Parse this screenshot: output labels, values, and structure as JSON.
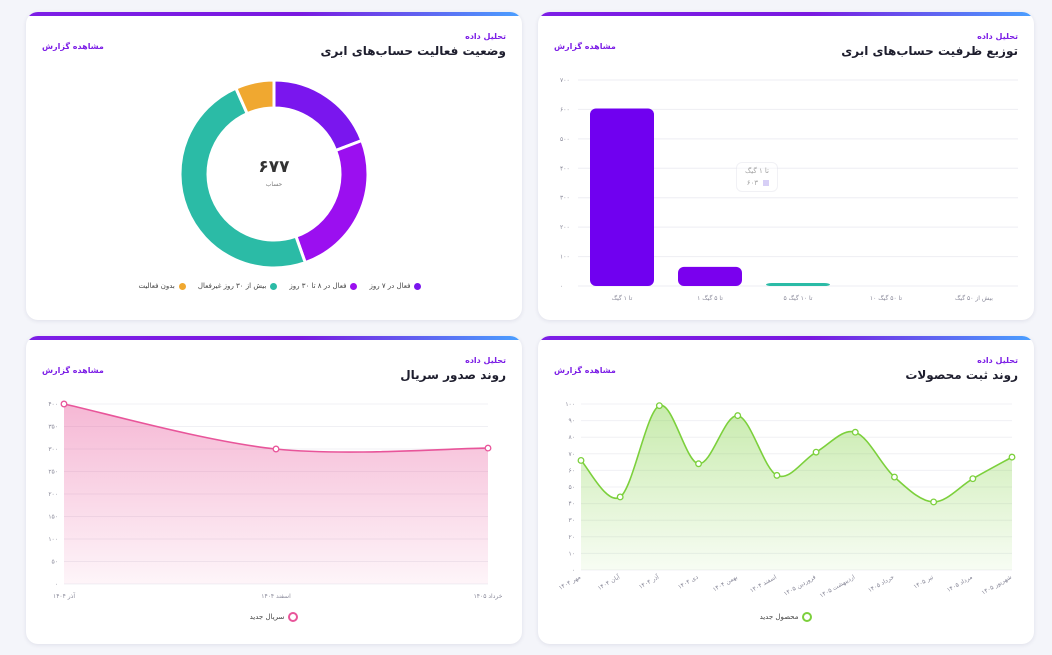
{
  "common": {
    "subtitle": "تحلیل داده",
    "report_link": "مشاهده گزارش"
  },
  "cards": {
    "activity": {
      "title": "وضعیت فعالیت حساب‌های ابری"
    },
    "capacity": {
      "title": "توزیع ظرفیت حساب‌های ابری"
    },
    "serial": {
      "title": "روند صدور سریال"
    },
    "products": {
      "title": "روند ثبت محصولات"
    }
  },
  "donut": {
    "total": "۶۷۷",
    "unit": "حساب"
  },
  "tooltip": {
    "title": "تا ۱ گیگ",
    "value": "۶۰۳"
  },
  "chart_data": [
    {
      "id": "activity",
      "type": "pie",
      "categories": [
        "فعال در ۷ روز",
        "فعال در ۸ تا ۳۰ روز",
        "بیش از ۳۰ روز غیرفعال",
        "بدون فعالیت"
      ],
      "values": [
        130,
        172,
        330,
        45
      ],
      "colors": [
        "#7a16ee",
        "#9b0ff0",
        "#2bbba6",
        "#f0a830"
      ]
    },
    {
      "id": "capacity",
      "type": "bar",
      "categories": [
        "تا ۱ گیگ",
        "۱ تا ۵ گیگ",
        "۵ تا ۱۰ گیگ",
        "۱۰ تا ۵۰ گیگ",
        "بیش از ۵۰ گیگ"
      ],
      "values": [
        603,
        65,
        10,
        0,
        0
      ],
      "colors": [
        "#7000f0",
        "#7a00ee",
        "#2bbba6",
        "#cccccc",
        "#cccccc"
      ],
      "ylim": [
        0,
        700
      ],
      "yticks": [
        "۰",
        "۱۰۰",
        "۲۰۰",
        "۳۰۰",
        "۴۰۰",
        "۵۰۰",
        "۶۰۰",
        "۷۰۰"
      ]
    },
    {
      "id": "serial",
      "type": "area",
      "x": [
        "آذر ۱۴۰۴",
        "اسفند ۱۴۰۴",
        "خرداد ۱۴۰۵"
      ],
      "series": [
        {
          "name": "سریال جدید",
          "values": [
            400,
            300,
            302
          ]
        }
      ],
      "color": "#e8559a",
      "ylim": [
        0,
        400
      ],
      "yticks": [
        "۰",
        "۵۰",
        "۱۰۰",
        "۱۵۰",
        "۲۰۰",
        "۲۵۰",
        "۳۰۰",
        "۳۵۰",
        "۴۰۰"
      ]
    },
    {
      "id": "products",
      "type": "area",
      "x": [
        "مهر ۱۴۰۴",
        "آبان ۱۴۰۴",
        "آذر ۱۴۰۴",
        "دی ۱۴۰۴",
        "بهمن ۱۴۰۴",
        "اسفند ۱۴۰۴",
        "فروردین ۱۴۰۵",
        "اردیبهشت ۱۴۰۵",
        "خرداد ۱۴۰۵",
        "تیر ۱۴۰۵",
        "مرداد ۱۴۰۵",
        "شهریور ۱۴۰۵"
      ],
      "series": [
        {
          "name": "محصول جدید",
          "values": [
            66,
            44,
            99,
            64,
            93,
            57,
            71,
            83,
            56,
            41,
            55,
            68
          ]
        }
      ],
      "color": "#7cd03c",
      "ylim": [
        0,
        100
      ],
      "yticks": [
        "۰",
        "۱۰",
        "۲۰",
        "۳۰",
        "۴۰",
        "۵۰",
        "۶۰",
        "۷۰",
        "۸۰",
        "۹۰",
        "۱۰۰"
      ]
    }
  ]
}
